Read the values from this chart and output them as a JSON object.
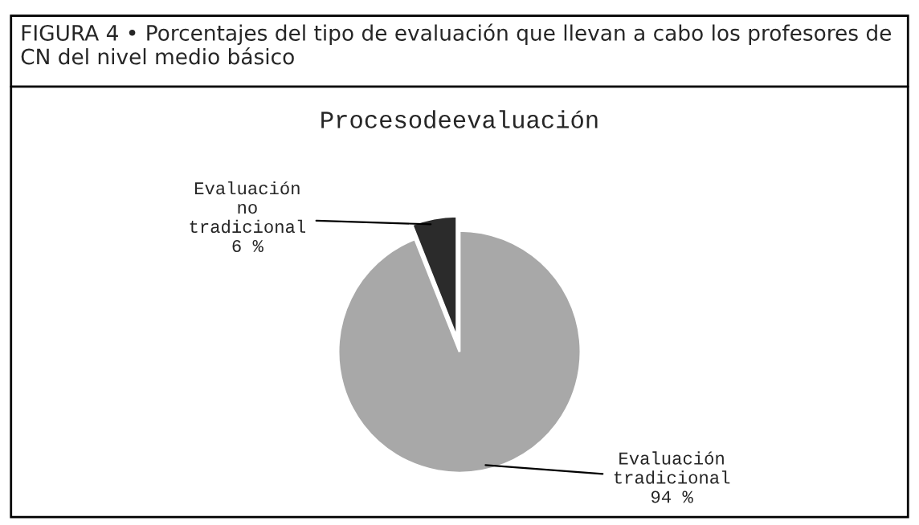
{
  "chart_data": {
    "type": "pie",
    "title": "FIGURA 4 • Porcentajes del tipo de evaluación que llevan a cabo los profesores de CN del nivel medio básico",
    "subtitle": "Procesodeevaluación",
    "categories": [
      "Evaluación\nno\ntradicional",
      "Evaluación\ntradicional"
    ],
    "values": [
      6,
      94
    ],
    "value_labels": [
      "6 %",
      "94 %"
    ],
    "colors": [
      "#2b2b2b",
      "#a8a8a8"
    ],
    "legend": false
  }
}
